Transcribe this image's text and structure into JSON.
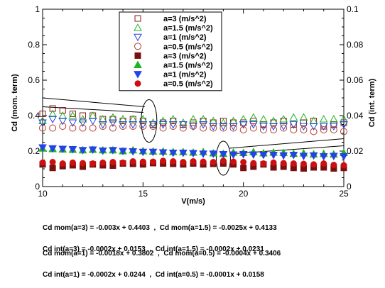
{
  "chart_data": {
    "type": "scatter",
    "xlabel": "V(m/s)",
    "ylabel_left": "Cd (mom. term)",
    "ylabel_right": "Cd (int. term)",
    "xlim": [
      10,
      25
    ],
    "ylim_left": [
      0,
      1
    ],
    "ylim_right": [
      0,
      0.1
    ],
    "x_ticks": [
      10,
      15,
      20,
      25
    ],
    "y_ticks_left": [
      "0",
      "0.2",
      "0.4",
      "0.6",
      "0.8",
      "1"
    ],
    "y_ticks_right": [
      "0",
      "0.02",
      "0.04",
      "0.06",
      "0.08",
      "0.1"
    ],
    "legend_position": "top-center",
    "series": [
      {
        "name": "a=3 (m/s^2)",
        "axis": "left",
        "marker": "square-open",
        "color": "#8b1a1a",
        "x": [
          10,
          10.5,
          11,
          11.5,
          12,
          12.5,
          13,
          13.5,
          14,
          14.5,
          15,
          15.5,
          16,
          16.5,
          17,
          17.5,
          18,
          18.5,
          19,
          19.5,
          20,
          20.5,
          21,
          21.5,
          22,
          22.5,
          23,
          23.5,
          24,
          24.5,
          25
        ],
        "y": [
          0.41,
          0.44,
          0.43,
          0.41,
          0.4,
          0.4,
          0.38,
          0.38,
          0.37,
          0.38,
          0.37,
          0.35,
          0.36,
          0.37,
          0.35,
          0.36,
          0.37,
          0.36,
          0.37,
          0.36,
          0.36,
          0.37,
          0.35,
          0.36,
          0.37,
          0.35,
          0.36,
          0.37,
          0.34,
          0.35,
          0.36
        ]
      },
      {
        "name": "a=1.5 (m/s^2)",
        "axis": "left",
        "marker": "triangle-up-open",
        "color": "#1fb41f",
        "x": [
          10,
          10.5,
          11,
          11.5,
          12,
          12.5,
          13,
          13.5,
          14,
          14.5,
          15,
          15.5,
          16,
          16.5,
          17,
          17.5,
          18,
          18.5,
          19,
          19.5,
          20,
          20.5,
          21,
          21.5,
          22,
          22.5,
          23,
          23.5,
          24,
          24.5,
          25
        ],
        "y": [
          0.37,
          0.41,
          0.4,
          0.4,
          0.38,
          0.4,
          0.38,
          0.39,
          0.38,
          0.38,
          0.38,
          0.36,
          0.37,
          0.38,
          0.36,
          0.38,
          0.38,
          0.37,
          0.36,
          0.37,
          0.38,
          0.39,
          0.38,
          0.37,
          0.38,
          0.39,
          0.39,
          0.37,
          0.38,
          0.38,
          0.38
        ]
      },
      {
        "name": "a=1 (m/s^2)",
        "axis": "left",
        "marker": "triangle-down-open",
        "color": "#2442e6",
        "x": [
          10,
          10.5,
          11,
          11.5,
          12,
          12.5,
          13,
          13.5,
          14,
          14.5,
          15,
          15.5,
          16,
          16.5,
          17,
          17.5,
          18,
          18.5,
          19,
          19.5,
          20,
          20.5,
          21,
          21.5,
          22,
          22.5,
          23,
          23.5,
          24,
          24.5,
          25
        ],
        "y": [
          0.36,
          0.38,
          0.37,
          0.36,
          0.36,
          0.37,
          0.35,
          0.36,
          0.35,
          0.35,
          0.35,
          0.35,
          0.35,
          0.35,
          0.35,
          0.34,
          0.35,
          0.34,
          0.34,
          0.34,
          0.35,
          0.35,
          0.34,
          0.34,
          0.34,
          0.35,
          0.34,
          0.34,
          0.34,
          0.34,
          0.35
        ]
      },
      {
        "name": "a=0.5 (m/s^2)",
        "axis": "left",
        "marker": "circle-open",
        "color": "#b23a2a",
        "x": [
          10,
          10.5,
          11,
          11.5,
          12,
          12.5,
          13,
          13.5,
          14,
          14.5,
          15,
          15.5,
          16,
          16.5,
          17,
          17.5,
          18,
          18.5,
          19,
          19.5,
          20,
          20.5,
          21,
          21.5,
          22,
          22.5,
          23,
          23.5,
          24,
          24.5,
          25
        ],
        "y": [
          0.33,
          0.33,
          0.34,
          0.33,
          0.33,
          0.33,
          0.34,
          0.33,
          0.34,
          0.34,
          0.34,
          0.34,
          0.33,
          0.34,
          0.33,
          0.34,
          0.33,
          0.33,
          0.33,
          0.33,
          0.32,
          0.33,
          0.32,
          0.32,
          0.33,
          0.32,
          0.32,
          0.31,
          0.32,
          0.32,
          0.31
        ]
      },
      {
        "name": "a=3 (m/s^2)",
        "axis": "right",
        "marker": "square-filled",
        "color": "#7a0f0f",
        "x": [
          10,
          10.5,
          11,
          11.5,
          12,
          12.5,
          13,
          13.5,
          14,
          14.5,
          15,
          15.5,
          16,
          16.5,
          17,
          17.5,
          18,
          18.5,
          19,
          19.5,
          20,
          20.5,
          21,
          21.5,
          22,
          22.5,
          23,
          23.5,
          24,
          24.5,
          25
        ],
        "y": [
          0.0125,
          0.0105,
          0.0115,
          0.012,
          0.0112,
          0.0125,
          0.012,
          0.0118,
          0.013,
          0.0128,
          0.0125,
          0.0132,
          0.013,
          0.0128,
          0.0125,
          0.013,
          0.0125,
          0.0128,
          0.013,
          0.0125,
          0.0105,
          0.0112,
          0.0125,
          0.0108,
          0.0112,
          0.0105,
          0.0102,
          0.0108,
          0.0108,
          0.0102,
          0.0105
        ]
      },
      {
        "name": "a=1.5 (m/s^2)",
        "axis": "right",
        "marker": "triangle-up-filled",
        "color": "#1fb41f",
        "x": [
          10,
          10.5,
          11,
          11.5,
          12,
          12.5,
          13,
          13.5,
          14,
          14.5,
          15,
          15.5,
          16,
          16.5,
          17,
          17.5,
          18,
          18.5,
          19,
          19.5,
          20,
          20.5,
          21,
          21.5,
          22,
          22.5,
          23,
          23.5,
          24,
          24.5,
          25
        ],
        "y": [
          0.0215,
          0.0212,
          0.021,
          0.0208,
          0.0205,
          0.0208,
          0.0205,
          0.0205,
          0.02,
          0.0205,
          0.02,
          0.0198,
          0.0198,
          0.0195,
          0.0195,
          0.0192,
          0.0195,
          0.0188,
          0.0185,
          0.0192,
          0.019,
          0.0195,
          0.0188,
          0.0192,
          0.019,
          0.0185,
          0.0188,
          0.0182,
          0.0185,
          0.0182,
          0.019
        ]
      },
      {
        "name": "a=1 (m/s^2)",
        "axis": "right",
        "marker": "triangle-down-filled",
        "color": "#2442e6",
        "x": [
          10,
          10.5,
          11,
          11.5,
          12,
          12.5,
          13,
          13.5,
          14,
          14.5,
          15,
          15.5,
          16,
          16.5,
          17,
          17.5,
          18,
          18.5,
          19,
          19.5,
          20,
          20.5,
          21,
          21.5,
          22,
          22.5,
          23,
          23.5,
          24,
          24.5,
          25
        ],
        "y": [
          0.022,
          0.0215,
          0.0212,
          0.021,
          0.0205,
          0.0208,
          0.0202,
          0.0205,
          0.02,
          0.0198,
          0.0195,
          0.0195,
          0.0192,
          0.019,
          0.019,
          0.0188,
          0.0185,
          0.0185,
          0.0182,
          0.018,
          0.0182,
          0.018,
          0.0178,
          0.0178,
          0.0175,
          0.0178,
          0.0172,
          0.0175,
          0.017,
          0.0172,
          0.017
        ]
      },
      {
        "name": "a=0.5 (m/s^2)",
        "axis": "right",
        "marker": "circle-filled",
        "color": "#cc1010",
        "x": [
          10,
          10.5,
          11,
          11.5,
          12,
          12.5,
          13,
          13.5,
          14,
          14.5,
          15,
          15.5,
          16,
          16.5,
          17,
          17.5,
          18,
          18.5,
          19,
          19.5,
          20,
          20.5,
          21,
          21.5,
          22,
          22.5,
          23,
          23.5,
          24,
          24.5,
          25
        ],
        "y": [
          0.0135,
          0.0138,
          0.013,
          0.0135,
          0.0132,
          0.013,
          0.0135,
          0.0138,
          0.0135,
          0.0142,
          0.014,
          0.014,
          0.0145,
          0.0142,
          0.0138,
          0.0142,
          0.014,
          0.0138,
          0.0145,
          0.014,
          0.0138,
          0.0132,
          0.013,
          0.0135,
          0.0132,
          0.013,
          0.0128,
          0.0125,
          0.013,
          0.0122,
          0.012
        ]
      }
    ],
    "legend_labels": [
      "a=3 (m/s^2)",
      "a=1.5 (m/s^2)",
      "a=1 (m/s^2)",
      "a=0.5 (m/s^2)",
      "a=3 (m/s^2)",
      "a=1.5 (m/s^2)",
      "a=1 (m/s^2)",
      "a=0.5 (m/s^2)"
    ],
    "annotations": [
      {
        "type": "ellipse-callout",
        "x": 15.3,
        "y_left": 0.37,
        "points_to": "left-axis"
      },
      {
        "type": "ellipse-callout",
        "x": 19.0,
        "y_left": 0.16,
        "points_to": "right-axis"
      }
    ]
  },
  "equations": {
    "mom_line1": "Cd mom(a=3) = -0.003x + 0.4403  ,  Cd mom(a=1.5) = -0.0025x + 0.4133",
    "mom_line2": "Cd mom(a=1) = -0.0018x + 0.3802  ,  Cd mom(a=0.5) = -0.0004x + 0.3406",
    "int_line1": "Cd int(a=3) = -0.0002x + 0.0153  ,  Cd int(a=1.5) = -0.0002x + 0.0231",
    "int_line2": "Cd int(a=1) = -0.0002x + 0.0244  ,  Cd int(a=0.5) = -0.0001x + 0.0158"
  }
}
